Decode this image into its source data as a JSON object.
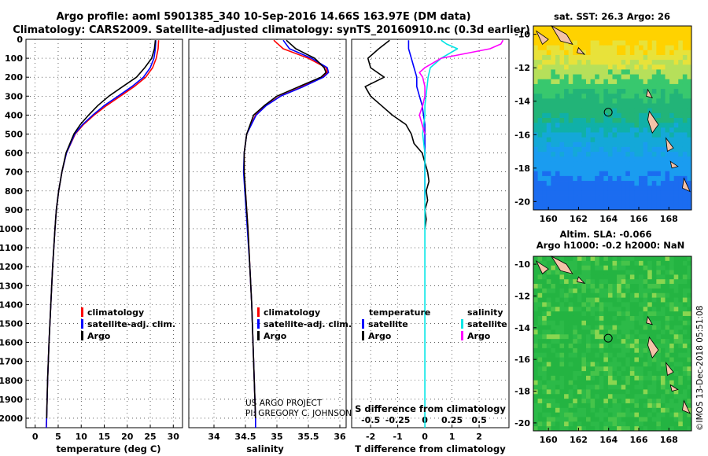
{
  "title_line1": "Argo profile: aoml 5901385_340 10-Sep-2016 14.66S 163.97E (DM data)",
  "title_line2": "Climatology: CARS2009. Satellite-adjusted climatology: synTS_20160910.nc (0.3d earlier)",
  "credit_line1": "US ARGO PROJECT",
  "credit_line2": "PI: GREGORY C. JOHNSON",
  "timestamp": "©IMOS 13-Dec-2018 05:51:08",
  "colors": {
    "climatology": "#ff0000",
    "satellite_adj": "#0000ff",
    "argo": "#000000",
    "salinity_satellite": "#00e5e5",
    "salinity_argo": "#ff00ff"
  },
  "chart_data": [
    {
      "type": "line",
      "xlabel": "temperature (deg C)",
      "ylabel": "",
      "xlim": [
        -2,
        32
      ],
      "ylim": [
        2050,
        0
      ],
      "xticks": [
        "0",
        "5",
        "10",
        "15",
        "20",
        "25",
        "30"
      ],
      "yticks": [
        "0",
        "100",
        "200",
        "300",
        "400",
        "500",
        "600",
        "700",
        "800",
        "900",
        "1000",
        "1100",
        "1200",
        "1300",
        "1400",
        "1500",
        "1600",
        "1700",
        "1800",
        "1900",
        "2000"
      ],
      "legend": [
        "climatology",
        "satellite-adj. clim.",
        "Argo"
      ],
      "series": [
        {
          "name": "climatology",
          "color": "#ff0000",
          "depth": [
            5,
            50,
            100,
            150,
            200,
            250,
            300,
            350,
            400,
            450,
            500,
            600,
            700,
            800,
            900,
            1000,
            1200,
            1400,
            1600,
            1800,
            2000,
            2050
          ],
          "values": [
            26.8,
            26.7,
            26.3,
            25.5,
            24,
            21.5,
            18.5,
            15.5,
            12.8,
            10.5,
            8.7,
            6.8,
            5.8,
            5.1,
            4.6,
            4.3,
            3.8,
            3.4,
            3.0,
            2.7,
            2.5,
            2.4
          ]
        },
        {
          "name": "satellite-adj. clim.",
          "color": "#0000ff",
          "depth": [
            5,
            50,
            100,
            150,
            200,
            250,
            300,
            350,
            400,
            450,
            500,
            600,
            700,
            800,
            900,
            1000,
            1200,
            1400,
            1600,
            1800,
            2000,
            2050
          ],
          "values": [
            26.2,
            26.1,
            25.8,
            25,
            23.5,
            21,
            18,
            15,
            12.5,
            10.3,
            8.6,
            6.8,
            5.8,
            5.1,
            4.6,
            4.3,
            3.8,
            3.4,
            3.0,
            2.7,
            2.5,
            2.4
          ]
        },
        {
          "name": "Argo",
          "color": "#000000",
          "depth": [
            5,
            50,
            100,
            150,
            200,
            250,
            300,
            350,
            400,
            450,
            500,
            600,
            700,
            800,
            900,
            1000,
            1200,
            1400,
            1600,
            1800,
            2000
          ],
          "values": [
            26.1,
            25.9,
            25.3,
            23.8,
            22,
            19,
            16,
            13.6,
            11.6,
            9.8,
            8.4,
            6.7,
            5.8,
            5.1,
            4.6,
            4.3,
            3.8,
            3.4,
            3.0,
            2.7,
            2.5
          ]
        }
      ]
    },
    {
      "type": "line",
      "xlabel": "salinity",
      "xlim": [
        33.6,
        36.1
      ],
      "ylim": [
        2050,
        0
      ],
      "xticks": [
        "34",
        "34.5",
        "35",
        "35.5",
        "36"
      ],
      "legend": [
        "climatology",
        "satellite-adj. clim.",
        "Argo"
      ],
      "series": [
        {
          "name": "climatology",
          "color": "#ff0000",
          "depth": [
            5,
            50,
            100,
            150,
            175,
            200,
            250,
            300,
            350,
            400,
            500,
            600,
            700,
            800,
            900,
            1000,
            1200,
            1400,
            1600,
            1800,
            2000,
            2050
          ],
          "values": [
            34.95,
            35.1,
            35.5,
            35.78,
            35.8,
            35.72,
            35.4,
            35.05,
            34.82,
            34.66,
            34.52,
            34.48,
            34.48,
            34.5,
            34.52,
            34.54,
            34.57,
            34.6,
            34.62,
            34.64,
            34.66,
            34.66
          ]
        },
        {
          "name": "satellite-adj. clim.",
          "color": "#0000ff",
          "depth": [
            5,
            50,
            100,
            150,
            175,
            200,
            250,
            300,
            350,
            400,
            500,
            600,
            700,
            800,
            900,
            1000,
            1200,
            1400,
            1600,
            1800,
            2000,
            2050
          ],
          "values": [
            35.1,
            35.2,
            35.55,
            35.8,
            35.82,
            35.74,
            35.42,
            35.06,
            34.83,
            34.67,
            34.52,
            34.48,
            34.47,
            34.49,
            34.51,
            34.53,
            34.57,
            34.6,
            34.62,
            34.64,
            34.66,
            34.66
          ]
        },
        {
          "name": "Argo",
          "color": "#000000",
          "depth": [
            5,
            50,
            100,
            150,
            175,
            200,
            250,
            300,
            350,
            400,
            500,
            600,
            700,
            800,
            900,
            1000,
            1200,
            1400,
            1600,
            1800,
            2000
          ],
          "values": [
            35.15,
            35.3,
            35.6,
            35.75,
            35.78,
            35.7,
            35.35,
            35.0,
            34.8,
            34.63,
            34.52,
            34.48,
            34.48,
            34.5,
            34.52,
            34.54,
            34.57,
            34.6,
            34.62,
            34.64,
            34.66
          ]
        }
      ]
    },
    {
      "type": "line",
      "xlabel": "T difference from climatology",
      "x2label": "S difference from climatology",
      "xlim": [
        -2.7,
        3.1
      ],
      "ylim": [
        2050,
        0
      ],
      "xticks": [
        "-2",
        "-1",
        "0",
        "1",
        "2"
      ],
      "x2lim": [
        -0.675,
        0.775
      ],
      "x2ticks": [
        "-0.5",
        "-0.25",
        "0",
        "0.25",
        "0.5"
      ],
      "legend_left_title": "temperature",
      "legend_right_title": "salinity",
      "legend": [
        "satellite",
        "Argo",
        "satellite",
        "Argo"
      ],
      "series": [
        {
          "name": "satellite",
          "color": "#0000ff",
          "axis": "T",
          "depth": [
            5,
            50,
            100,
            150,
            200,
            250,
            300,
            350,
            400,
            450,
            500,
            600,
            700,
            800,
            850
          ],
          "values": [
            -0.6,
            -0.6,
            -0.5,
            -0.4,
            -0.3,
            -0.3,
            -0.2,
            -0.1,
            -0.05,
            0,
            0,
            0,
            0,
            0,
            0
          ]
        },
        {
          "name": "Argo",
          "color": "#000000",
          "axis": "T",
          "depth": [
            5,
            50,
            100,
            150,
            200,
            250,
            300,
            350,
            400,
            450,
            500,
            550,
            600,
            650,
            700,
            750,
            800,
            850,
            900,
            950,
            1000
          ],
          "values": [
            -1.3,
            -1.7,
            -2.1,
            -2.0,
            -1.5,
            -2.2,
            -2.0,
            -1.6,
            -1.2,
            -0.7,
            -0.5,
            -0.4,
            -0.1,
            0,
            0.1,
            0.15,
            0.05,
            0.1,
            0,
            0.05,
            0
          ]
        },
        {
          "name": "satellite",
          "color": "#00e5e5",
          "axis": "S",
          "depth": [
            5,
            25,
            50,
            100,
            150,
            200,
            250,
            300,
            350,
            400,
            500,
            600,
            700,
            800,
            1000,
            1200,
            1400,
            1600,
            1800,
            2000,
            2050
          ],
          "values": [
            0.15,
            0.2,
            0.3,
            0.15,
            0.05,
            0.03,
            0.02,
            0.01,
            0.0,
            0.0,
            -0.02,
            0.0,
            0.0,
            0.0,
            0.0,
            0.0,
            0.0,
            0.0,
            0.0,
            0.0,
            0.0
          ]
        },
        {
          "name": "Argo",
          "color": "#ff00ff",
          "axis": "S",
          "depth": [
            5,
            25,
            50,
            100,
            150,
            175,
            200,
            250,
            300,
            350,
            400,
            500
          ],
          "values": [
            0.72,
            0.7,
            0.6,
            0.15,
            0.0,
            -0.05,
            -0.02,
            0.0,
            0.0,
            -0.02,
            -0.05,
            0.0
          ]
        }
      ]
    },
    {
      "type": "heatmap",
      "title": "sat. SST: 26.3 Argo: 26",
      "xlim": [
        159,
        169.5
      ],
      "ylim": [
        -20.5,
        -9.5
      ],
      "xticks": [
        "160",
        "162",
        "164",
        "166",
        "168"
      ],
      "yticks": [
        "-10",
        "-12",
        "-14",
        "-16",
        "-18",
        "-20"
      ],
      "marker": {
        "lon": 163.97,
        "lat": -14.66
      }
    },
    {
      "type": "heatmap",
      "title": "Altim. SLA: -0.066",
      "subtitle": "Argo h1000: -0.2 h2000: NaN",
      "xlim": [
        159,
        169.5
      ],
      "ylim": [
        -20.5,
        -9.5
      ],
      "xticks": [
        "160",
        "162",
        "164",
        "166",
        "168"
      ],
      "yticks": [
        "-10",
        "-12",
        "-14",
        "-16",
        "-18",
        "-20"
      ],
      "marker": {
        "lon": 163.97,
        "lat": -14.66
      }
    }
  ]
}
